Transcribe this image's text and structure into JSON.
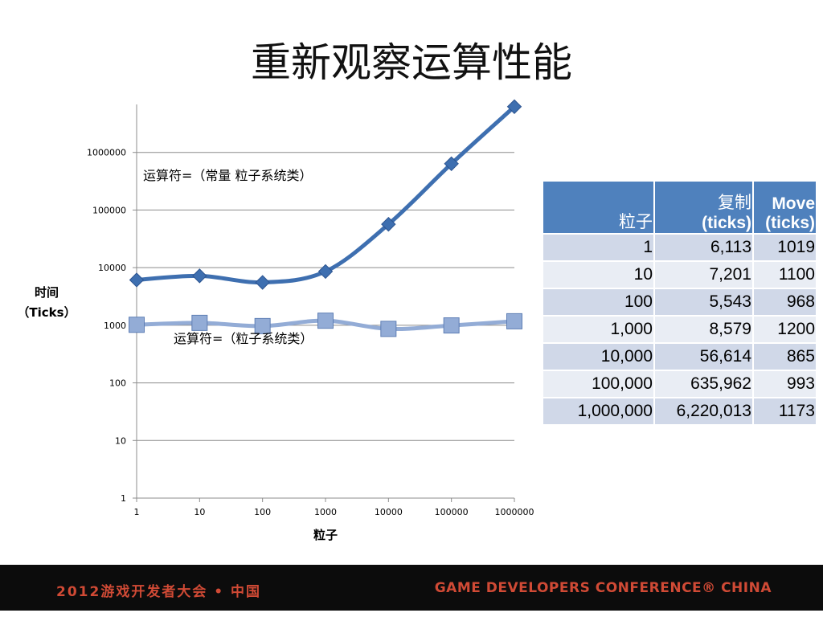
{
  "slide": {
    "title": "重新观察运算性能"
  },
  "chart_data": {
    "type": "line",
    "x_scale": "log",
    "y_scale": "log",
    "x": [
      1,
      10,
      100,
      1000,
      10000,
      100000,
      1000000
    ],
    "x_tick_labels": [
      "1",
      "10",
      "100",
      "1000",
      "10000",
      "100000",
      "1000000"
    ],
    "y_tick_labels": [
      "1",
      "10",
      "100",
      "1000",
      "10000",
      "100000",
      "1000000"
    ],
    "xlim": [
      1,
      1000000
    ],
    "ylim": [
      1,
      10000000
    ],
    "xlabel": "粒子",
    "ylabel_line1": "时间",
    "ylabel_line2": "（Ticks）",
    "grid": "horizontal",
    "series": [
      {
        "annotation": "运算符=（常量 粒子系统类）",
        "marker": "diamond",
        "color": "#3e6fb0",
        "values": [
          6113,
          7201,
          5543,
          8579,
          56614,
          635962,
          6220013
        ]
      },
      {
        "annotation": "运算符=（粒子系统类）",
        "marker": "square",
        "color": "#93acd6",
        "values": [
          1019,
          1100,
          968,
          1200,
          865,
          993,
          1173
        ]
      }
    ]
  },
  "table": {
    "headers": [
      {
        "line1": "",
        "line2": "粒子"
      },
      {
        "line1": "复制",
        "line2": "(ticks)"
      },
      {
        "line1": "Move",
        "line2": "(ticks)"
      }
    ],
    "rows": [
      [
        "1",
        "6,113",
        "1019"
      ],
      [
        "10",
        "7,201",
        "1100"
      ],
      [
        "100",
        "5,543",
        "968"
      ],
      [
        "1,000",
        "8,579",
        "1200"
      ],
      [
        "10,000",
        "56,614",
        "865"
      ],
      [
        "100,000",
        "635,962",
        "993"
      ],
      [
        "1,000,000",
        "6,220,013",
        "1173"
      ]
    ]
  },
  "footer": {
    "left": "2012游戏开发者大会 • 中国",
    "right": "GAME DEVELOPERS CONFERENCE® CHINA"
  },
  "colors": {
    "header_blue": "#4f81bd",
    "row_dark": "#d0d8e8",
    "row_light": "#e9edf4",
    "footer_bg": "#0c0c0c",
    "footer_text": "#d04a35"
  }
}
